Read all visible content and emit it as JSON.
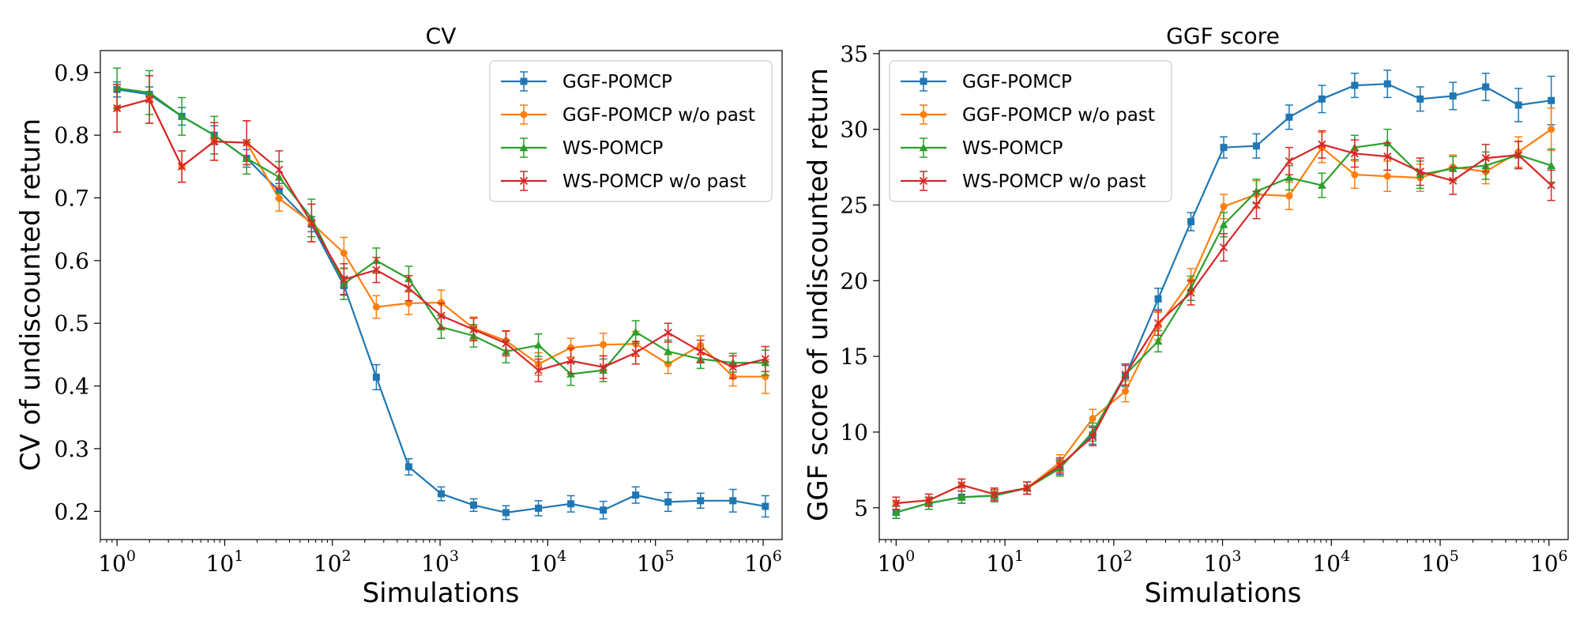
{
  "chart_data": [
    {
      "type": "line",
      "title": "CV",
      "xlabel": "Simulations",
      "ylabel": "CV of undiscounted return",
      "xscale": "log",
      "xlim": [
        0.7,
        1500000
      ],
      "ylim": [
        0.155,
        0.935
      ],
      "xticks": [
        1,
        10,
        100,
        1000,
        10000,
        100000,
        1000000
      ],
      "xtick_labels": [
        {
          "base": "10",
          "exp": "0"
        },
        {
          "base": "10",
          "exp": "1"
        },
        {
          "base": "10",
          "exp": "2"
        },
        {
          "base": "10",
          "exp": "3"
        },
        {
          "base": "10",
          "exp": "4"
        },
        {
          "base": "10",
          "exp": "5"
        },
        {
          "base": "10",
          "exp": "6"
        }
      ],
      "yticks": [
        0.2,
        0.3,
        0.4,
        0.5,
        0.6,
        0.7,
        0.8,
        0.9
      ],
      "ytick_labels": [
        "0.2",
        "0.3",
        "0.4",
        "0.5",
        "0.6",
        "0.7",
        "0.8",
        "0.9"
      ],
      "grid": false,
      "legend_position": "top-right",
      "x": [
        1,
        2,
        4,
        8,
        16,
        32,
        64,
        128,
        256,
        512,
        1024,
        2048,
        4096,
        8192,
        16384,
        32768,
        65536,
        131072,
        262144,
        524288,
        1048576
      ],
      "series": [
        {
          "name": "GGF-POMCP",
          "color": "#1f77b4",
          "marker": "square",
          "values": [
            0.873,
            0.865,
            0.83,
            0.8,
            0.763,
            0.711,
            0.658,
            0.56,
            0.414,
            0.271,
            0.228,
            0.21,
            0.198,
            0.205,
            0.212,
            0.202,
            0.226,
            0.215,
            0.217,
            0.217,
            0.208
          ],
          "errors": [
            0.012,
            0.012,
            0.014,
            0.015,
            0.014,
            0.012,
            0.012,
            0.014,
            0.02,
            0.013,
            0.011,
            0.01,
            0.011,
            0.012,
            0.013,
            0.014,
            0.013,
            0.015,
            0.012,
            0.018,
            0.017
          ]
        },
        {
          "name": "GGF-POMCP w/o past",
          "color": "#ff7f0e",
          "marker": "circle",
          "values": [
            0.843,
            0.857,
            0.75,
            0.79,
            0.788,
            0.699,
            0.66,
            0.612,
            0.526,
            0.532,
            0.533,
            0.492,
            0.472,
            0.435,
            0.461,
            0.466,
            0.467,
            0.435,
            0.465,
            0.415,
            0.415
          ],
          "errors": [
            0.038,
            0.038,
            0.025,
            0.03,
            0.035,
            0.02,
            0.03,
            0.025,
            0.018,
            0.018,
            0.02,
            0.018,
            0.015,
            0.018,
            0.015,
            0.018,
            0.02,
            0.015,
            0.015,
            0.015,
            0.027
          ]
        },
        {
          "name": "WS-POMCP",
          "color": "#2ca02c",
          "marker": "triangle",
          "values": [
            0.875,
            0.868,
            0.83,
            0.8,
            0.763,
            0.733,
            0.668,
            0.563,
            0.6,
            0.571,
            0.494,
            0.48,
            0.455,
            0.465,
            0.419,
            0.425,
            0.486,
            0.455,
            0.443,
            0.437,
            0.437
          ],
          "errors": [
            0.032,
            0.035,
            0.03,
            0.03,
            0.025,
            0.025,
            0.03,
            0.025,
            0.02,
            0.02,
            0.018,
            0.018,
            0.018,
            0.018,
            0.018,
            0.018,
            0.018,
            0.018,
            0.015,
            0.015,
            0.02
          ]
        },
        {
          "name": "WS-POMCP w/o past",
          "color": "#d62728",
          "marker": "x",
          "values": [
            0.843,
            0.857,
            0.75,
            0.79,
            0.788,
            0.745,
            0.66,
            0.57,
            0.585,
            0.556,
            0.512,
            0.49,
            0.468,
            0.425,
            0.44,
            0.43,
            0.453,
            0.485,
            0.455,
            0.43,
            0.443
          ],
          "errors": [
            0.038,
            0.038,
            0.025,
            0.03,
            0.035,
            0.03,
            0.03,
            0.025,
            0.02,
            0.02,
            0.02,
            0.018,
            0.02,
            0.018,
            0.02,
            0.018,
            0.018,
            0.015,
            0.018,
            0.018,
            0.02
          ]
        }
      ]
    },
    {
      "type": "line",
      "title": "GGF score",
      "xlabel": "Simulations",
      "ylabel": "GGF score of undiscounted return",
      "xscale": "log",
      "xlim": [
        0.7,
        1500000
      ],
      "ylim": [
        2.9,
        35.2
      ],
      "xticks": [
        1,
        10,
        100,
        1000,
        10000,
        100000,
        1000000
      ],
      "xtick_labels": [
        {
          "base": "10",
          "exp": "0"
        },
        {
          "base": "10",
          "exp": "1"
        },
        {
          "base": "10",
          "exp": "2"
        },
        {
          "base": "10",
          "exp": "3"
        },
        {
          "base": "10",
          "exp": "4"
        },
        {
          "base": "10",
          "exp": "5"
        },
        {
          "base": "10",
          "exp": "6"
        }
      ],
      "yticks": [
        5,
        10,
        15,
        20,
        25,
        30,
        35
      ],
      "ytick_labels": [
        "5",
        "10",
        "15",
        "20",
        "25",
        "30",
        "35"
      ],
      "grid": false,
      "legend_position": "top-left",
      "x": [
        1,
        2,
        4,
        8,
        16,
        32,
        64,
        128,
        256,
        512,
        1024,
        2048,
        4096,
        8192,
        16384,
        32768,
        65536,
        131072,
        262144,
        524288,
        1048576
      ],
      "series": [
        {
          "name": "GGF-POMCP",
          "color": "#1f77b4",
          "marker": "square",
          "values": [
            4.7,
            5.3,
            5.7,
            5.8,
            6.3,
            7.7,
            9.8,
            13.7,
            18.8,
            23.9,
            28.8,
            28.9,
            30.8,
            32.0,
            32.9,
            33.0,
            32.0,
            32.2,
            32.8,
            31.6,
            31.9
          ],
          "errors": [
            0.4,
            0.4,
            0.4,
            0.4,
            0.4,
            0.5,
            0.6,
            0.7,
            0.7,
            0.6,
            0.7,
            0.8,
            0.8,
            0.9,
            0.8,
            0.9,
            0.8,
            0.9,
            0.9,
            1.1,
            1.6
          ]
        },
        {
          "name": "GGF-POMCP w/o past",
          "color": "#ff7f0e",
          "marker": "circle",
          "values": [
            5.3,
            5.5,
            6.5,
            5.9,
            6.3,
            8.0,
            10.9,
            12.7,
            17.0,
            20.0,
            24.9,
            25.7,
            25.6,
            28.8,
            27.0,
            26.9,
            26.8,
            27.5,
            27.2,
            28.5,
            30.0
          ],
          "errors": [
            0.4,
            0.4,
            0.4,
            0.4,
            0.4,
            0.5,
            0.6,
            0.7,
            0.9,
            0.8,
            0.8,
            0.9,
            0.9,
            1.0,
            0.9,
            1.0,
            0.9,
            0.8,
            0.8,
            1.0,
            1.4
          ]
        },
        {
          "name": "WS-POMCP",
          "color": "#2ca02c",
          "marker": "triangle",
          "values": [
            4.7,
            5.3,
            5.7,
            5.8,
            6.3,
            7.6,
            10.0,
            13.8,
            16.0,
            19.5,
            23.7,
            25.9,
            26.8,
            26.3,
            28.8,
            29.1,
            27.0,
            27.4,
            27.6,
            28.3,
            27.6
          ],
          "errors": [
            0.4,
            0.4,
            0.4,
            0.4,
            0.4,
            0.5,
            0.6,
            0.7,
            0.7,
            0.8,
            0.8,
            0.8,
            0.8,
            0.8,
            0.8,
            0.9,
            0.9,
            0.8,
            0.9,
            0.9,
            1.1
          ]
        },
        {
          "name": "WS-POMCP w/o past",
          "color": "#d62728",
          "marker": "x",
          "values": [
            5.3,
            5.5,
            6.5,
            5.9,
            6.3,
            7.8,
            9.7,
            13.8,
            17.2,
            19.2,
            22.2,
            25.0,
            27.9,
            29.0,
            28.4,
            28.2,
            27.2,
            26.6,
            28.1,
            28.3,
            26.3
          ],
          "errors": [
            0.4,
            0.4,
            0.4,
            0.4,
            0.4,
            0.5,
            0.6,
            0.7,
            0.8,
            0.8,
            0.9,
            0.9,
            0.9,
            0.9,
            0.9,
            0.9,
            0.9,
            0.9,
            0.9,
            0.9,
            1.0
          ]
        }
      ]
    }
  ]
}
